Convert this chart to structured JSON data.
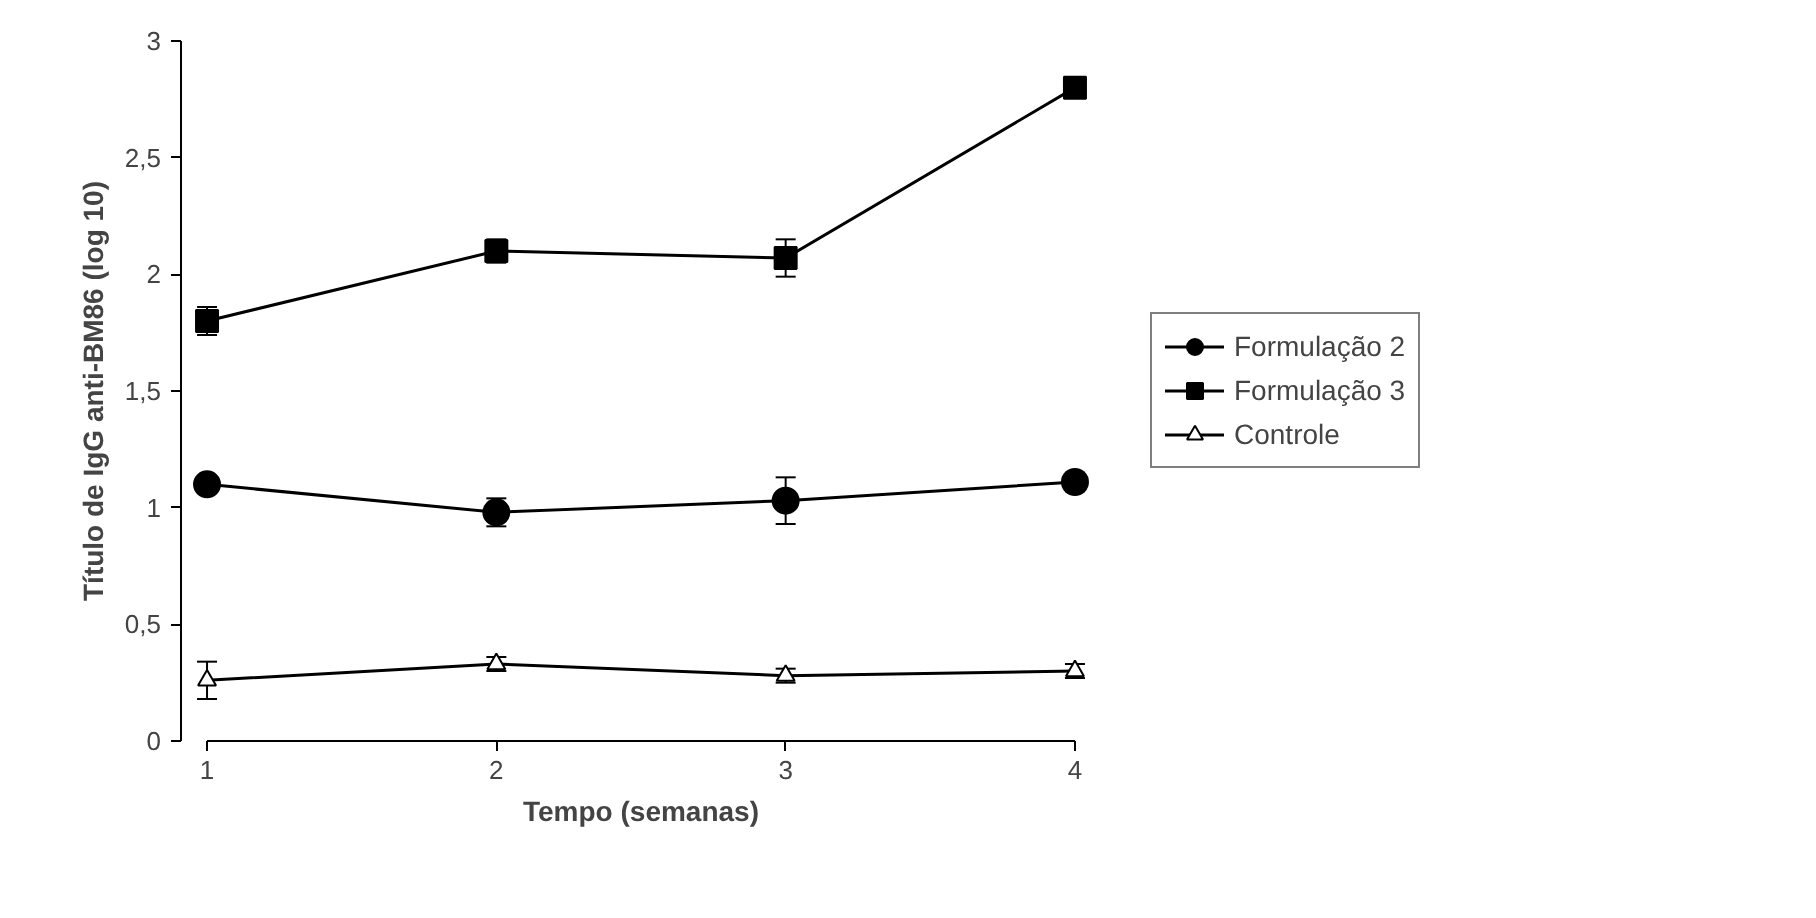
{
  "chart_data": {
    "type": "line",
    "xlabel": "Tempo (semanas)",
    "ylabel": "Título de IgG anti-BM86 (log 10)",
    "x": [
      1,
      2,
      3,
      4
    ],
    "xlim": [
      1,
      4
    ],
    "xticks": [
      1,
      2,
      3,
      4
    ],
    "ylim": [
      0,
      3
    ],
    "yticks": [
      {
        "value": 0,
        "label": "0"
      },
      {
        "value": 0.5,
        "label": "0,5"
      },
      {
        "value": 1,
        "label": "1"
      },
      {
        "value": 1.5,
        "label": "1,5"
      },
      {
        "value": 2,
        "label": "2"
      },
      {
        "value": 2.5,
        "label": "2,5"
      },
      {
        "value": 3,
        "label": "3"
      }
    ],
    "grid": false,
    "legend": "right",
    "series": [
      {
        "name": "Formulação 2",
        "color": "#000000",
        "marker": "circle",
        "values": [
          1.1,
          0.98,
          1.03,
          1.11
        ],
        "errors": [
          0.03,
          0.06,
          0.1,
          0.04
        ]
      },
      {
        "name": "Formulação 3",
        "color": "#000000",
        "marker": "square",
        "values": [
          1.8,
          2.1,
          2.07,
          2.8
        ],
        "errors": [
          0.06,
          0.05,
          0.08,
          0.03
        ]
      },
      {
        "name": "Controle",
        "color": "#000000",
        "marker": "triangle",
        "values": [
          0.26,
          0.33,
          0.28,
          0.3
        ],
        "errors": [
          0.08,
          0.03,
          0.03,
          0.03
        ]
      }
    ]
  }
}
